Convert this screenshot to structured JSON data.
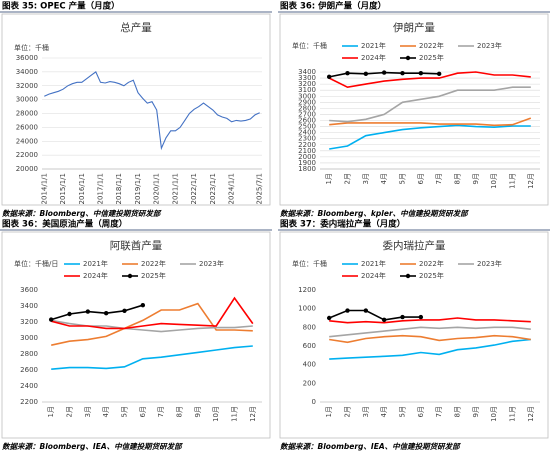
{
  "chart_data": [
    {
      "type": "line",
      "caption": "图表 35: OPEC 产量（月度）",
      "title": "总产量",
      "unit_label": "单位：千桶",
      "source": "数据来源：Bloomberg、中信建投期货研发部",
      "categories": [
        "2014/1/1",
        null,
        null,
        null,
        "2015/1/1",
        null,
        null,
        null,
        "2016/1/1",
        null,
        null,
        null,
        "2017/1/1",
        null,
        null,
        null,
        "2018/1/1",
        null,
        null,
        null,
        "2019/1/1",
        null,
        null,
        null,
        "2020/1/1",
        null,
        null,
        null,
        "2021/1/1",
        null,
        null,
        null,
        "2022/1/1",
        null,
        null,
        null,
        "2023/1/1",
        null,
        null,
        null,
        "2024/1/1",
        null,
        null,
        null,
        null,
        null,
        "2025/7/1"
      ],
      "values": [
        30500,
        30800,
        31000,
        31200,
        31500,
        32000,
        32300,
        32500,
        32500,
        33000,
        33500,
        34000,
        32500,
        32400,
        32600,
        32500,
        32300,
        32000,
        32500,
        32800,
        31000,
        30200,
        29500,
        29700,
        28500,
        23000,
        24500,
        25500,
        25500,
        26000,
        27000,
        28000,
        28600,
        29000,
        29500,
        29000,
        28500,
        27800,
        27500,
        27300,
        26800,
        27000,
        26900,
        27000,
        27200,
        27800,
        28100
      ],
      "color": "#4472c4",
      "ylim": [
        20000,
        36000
      ],
      "yticks": [
        20000,
        22000,
        24000,
        26000,
        28000,
        30000,
        32000,
        34000,
        36000
      ],
      "grid": true
    },
    {
      "type": "line",
      "caption": "图表 36: 伊朗产量（月度）",
      "title": "伊朗产量",
      "unit_label": "单位：千桶",
      "source": "数据来源：Bloomberg、kpler、中信建投期货研发部",
      "categories": [
        "1月",
        "2月",
        "3月",
        "4月",
        "5月",
        "6月",
        "7月",
        "8月",
        "9月",
        "10月",
        "11月",
        "12月"
      ],
      "series": [
        {
          "name": "2021年",
          "color": "#00b0f0",
          "values": [
            2130,
            2180,
            2350,
            2400,
            2450,
            2480,
            2500,
            2520,
            2500,
            2490,
            2510,
            2510
          ]
        },
        {
          "name": "2022年",
          "color": "#ed7d31",
          "values": [
            2530,
            2560,
            2560,
            2560,
            2560,
            2560,
            2540,
            2540,
            2540,
            2520,
            2530,
            2640
          ]
        },
        {
          "name": "2023年",
          "color": "#a5a5a5",
          "values": [
            2600,
            2580,
            2620,
            2700,
            2900,
            2950,
            3000,
            3100,
            3100,
            3100,
            3150,
            3150
          ]
        },
        {
          "name": "2024年",
          "color": "#ff0000",
          "values": [
            3300,
            3150,
            3200,
            3250,
            3280,
            3300,
            3300,
            3380,
            3400,
            3350,
            3350,
            3320
          ]
        },
        {
          "name": "2025年",
          "color": "#000000",
          "marker": true,
          "values": [
            3320,
            3380,
            3370,
            3390,
            3380,
            3380,
            3370,
            null,
            null,
            null,
            null,
            null
          ]
        }
      ],
      "ylim": [
        1800,
        3400
      ],
      "yticks": [
        1800,
        1900,
        2000,
        2100,
        2200,
        2300,
        2400,
        2500,
        2600,
        2700,
        2800,
        2900,
        3000,
        3100,
        3200,
        3300,
        3400
      ],
      "grid": true
    },
    {
      "type": "line",
      "caption": "图表 36：美国原油产量（周度）",
      "title": "阿联酋产量",
      "unit_label": "单位：千桶/日",
      "source": "数据来源：Bloomberg、IEA、中信建投期货研发部",
      "categories": [
        "1月",
        "2月",
        "3月",
        "4月",
        "5月",
        "6月",
        "7月",
        "8月",
        "9月",
        "10月",
        "11月",
        "12月"
      ],
      "series": [
        {
          "name": "2021年",
          "color": "#00b0f0",
          "values": [
            2610,
            2630,
            2630,
            2620,
            2640,
            2740,
            2760,
            2790,
            2820,
            2850,
            2880,
            2900
          ]
        },
        {
          "name": "2022年",
          "color": "#ed7d31",
          "values": [
            2910,
            2960,
            2980,
            3020,
            3120,
            3220,
            3350,
            3350,
            3430,
            3100,
            3100,
            3090
          ]
        },
        {
          "name": "2023年",
          "color": "#a5a5a5",
          "values": [
            3220,
            3180,
            3150,
            3150,
            3120,
            3100,
            3080,
            3100,
            3120,
            3130,
            3130,
            3150
          ]
        },
        {
          "name": "2024年",
          "color": "#ff0000",
          "values": [
            3210,
            3150,
            3150,
            3120,
            3120,
            3150,
            3180,
            3170,
            3160,
            3150,
            3500,
            3180
          ]
        },
        {
          "name": "2025年",
          "color": "#000000",
          "marker": true,
          "values": [
            3230,
            3300,
            3330,
            3310,
            3340,
            3410,
            null,
            null,
            null,
            null,
            null,
            null
          ]
        }
      ],
      "ylim": [
        2200,
        3600
      ],
      "yticks": [
        2200,
        2400,
        2600,
        2800,
        3000,
        3200,
        3400,
        3600
      ],
      "grid": false
    },
    {
      "type": "line",
      "caption": "图表 37：委内瑞拉产量（月度）",
      "title": "委内瑞拉产量",
      "unit_label": "单位：千桶",
      "source": "数据来源：Bloomberg、IEA、中信建投期货研发部",
      "categories": [
        "1月",
        "2月",
        "3月",
        "4月",
        "5月",
        "6月",
        "7月",
        "8月",
        "9月",
        "10月",
        "11月",
        "12月"
      ],
      "series": [
        {
          "name": "2021年",
          "color": "#00b0f0",
          "values": [
            460,
            470,
            480,
            490,
            500,
            530,
            510,
            560,
            580,
            610,
            650,
            670
          ]
        },
        {
          "name": "2022年",
          "color": "#ed7d31",
          "values": [
            670,
            640,
            680,
            700,
            710,
            700,
            660,
            680,
            690,
            710,
            700,
            670
          ]
        },
        {
          "name": "2023年",
          "color": "#a5a5a5",
          "values": [
            700,
            720,
            740,
            760,
            780,
            800,
            790,
            800,
            790,
            800,
            800,
            780
          ]
        },
        {
          "name": "2024年",
          "color": "#ff0000",
          "values": [
            870,
            850,
            860,
            850,
            870,
            880,
            880,
            900,
            880,
            880,
            870,
            860
          ]
        },
        {
          "name": "2025年",
          "color": "#000000",
          "marker": true,
          "values": [
            900,
            980,
            980,
            880,
            910,
            910,
            null,
            null,
            null,
            null,
            null,
            null
          ]
        }
      ],
      "ylim": [
        0,
        1200
      ],
      "yticks": [
        0,
        200,
        400,
        600,
        800,
        1000,
        1200
      ],
      "grid": false
    }
  ]
}
